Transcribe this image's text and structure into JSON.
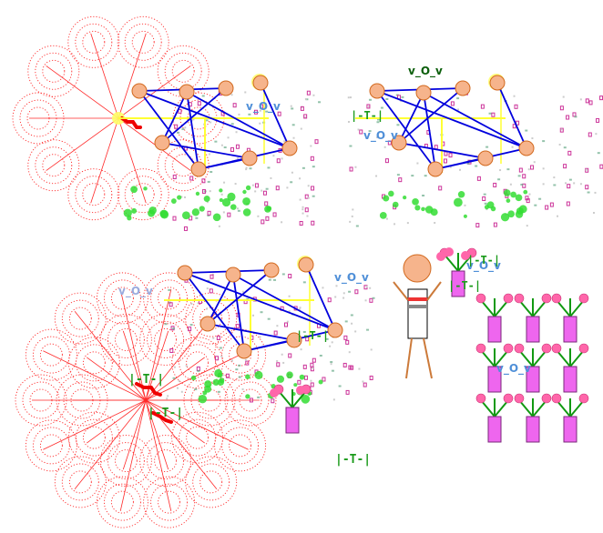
{
  "labels": {
    "vov": "v_O_v",
    "tee": "|-T-|",
    "tee_bang": "|-T-|"
  },
  "colors": {
    "background": "#ffffff",
    "spiral_red": "#ff2a2a",
    "web_blue": "#0000dd",
    "node_fill": "#f6b48c",
    "node_stroke": "#d2691e",
    "sun_yellow": "#ffff66",
    "ray_yellow": "#ffff33",
    "label_blue": "#4f8fd8",
    "label_green": "#1a9a1a",
    "label_darkgreen": "#0b5e0b",
    "dot_green": "#33dd33",
    "confetti_pink": "#cc3399",
    "confetti_teal": "#66aa88",
    "pot_magenta": "#ee66ee",
    "flower_pink": "#ff66aa",
    "stem_green": "#119911",
    "figure_brown": "#cc7a3a"
  },
  "icons": [
    "spiral-flower-icon",
    "stick-figure-icon",
    "potted-flower-icon",
    "sun-icon"
  ]
}
